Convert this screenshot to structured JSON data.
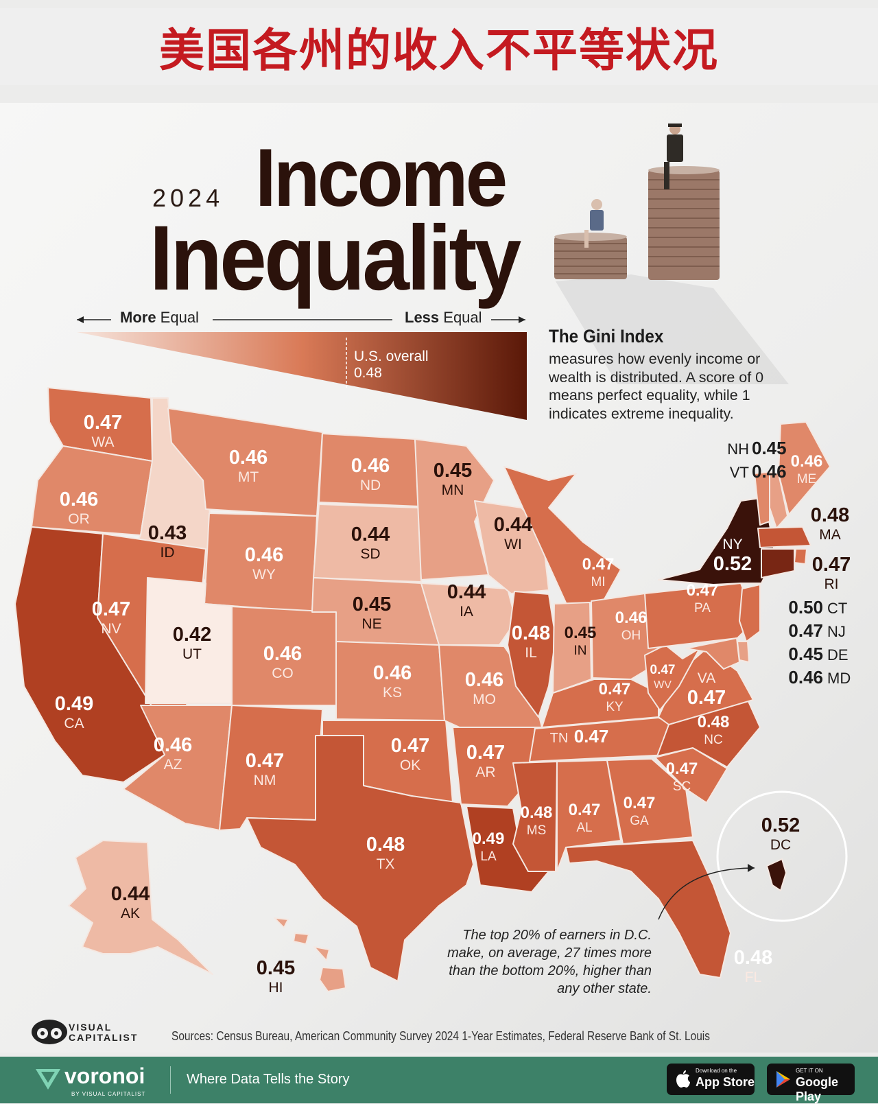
{
  "banner_title": "美国各州的收入不平等状况",
  "year": "2024",
  "title_line1": "Income",
  "title_line2": "Inequality",
  "scale": {
    "more_strong": "More",
    "more_rest": " Equal",
    "less_strong": "Less",
    "less_rest": " Equal",
    "overall_label": "U.S. overall",
    "overall_value": "0.48"
  },
  "gini": {
    "title": "The Gini Index",
    "description": "measures how evenly income or wealth is distributed. A score of 0 means perfect equality, while 1 indicates extreme inequality."
  },
  "note": "The top 20% of earners in D.C. make, on average, 27 times more than the bottom 20%, higher than any other state.",
  "sources": "Sources: Census Bureau, American Community Survey 2024 1-Year Estimates, Federal Reserve Bank of St. Louis",
  "brand": {
    "logo_line1": "VISUAL",
    "logo_line2": "CAPITALIST"
  },
  "footer": {
    "brand": "voronoi",
    "brand_sub": "BY VISUAL CAPITALIST",
    "tagline": "Where Data Tells the Story",
    "appstore_small": "Download on the",
    "appstore": "App Store",
    "googleplay_small": "GET IT ON",
    "googleplay": "Google Play"
  },
  "colors": {
    "banner_title": "#c41a20",
    "footer": "#3d8168",
    "darkest": "#3a120a",
    "lightest": "#fbeee8"
  },
  "chart_data": {
    "type": "choropleth",
    "metric": "Gini Index",
    "states": [
      {
        "code": "WA",
        "value": 0.47
      },
      {
        "code": "OR",
        "value": 0.46
      },
      {
        "code": "CA",
        "value": 0.49
      },
      {
        "code": "ID",
        "value": 0.43
      },
      {
        "code": "NV",
        "value": 0.47
      },
      {
        "code": "MT",
        "value": 0.46
      },
      {
        "code": "WY",
        "value": 0.46
      },
      {
        "code": "UT",
        "value": 0.42
      },
      {
        "code": "AZ",
        "value": 0.46
      },
      {
        "code": "CO",
        "value": 0.46
      },
      {
        "code": "NM",
        "value": 0.47
      },
      {
        "code": "ND",
        "value": 0.46
      },
      {
        "code": "SD",
        "value": 0.44
      },
      {
        "code": "NE",
        "value": 0.45
      },
      {
        "code": "KS",
        "value": 0.46
      },
      {
        "code": "OK",
        "value": 0.47
      },
      {
        "code": "TX",
        "value": 0.48
      },
      {
        "code": "MN",
        "value": 0.45
      },
      {
        "code": "IA",
        "value": 0.44
      },
      {
        "code": "MO",
        "value": 0.46
      },
      {
        "code": "AR",
        "value": 0.47
      },
      {
        "code": "LA",
        "value": 0.49
      },
      {
        "code": "WI",
        "value": 0.44
      },
      {
        "code": "IL",
        "value": 0.48
      },
      {
        "code": "MI",
        "value": 0.47
      },
      {
        "code": "IN",
        "value": 0.45
      },
      {
        "code": "OH",
        "value": 0.46
      },
      {
        "code": "KY",
        "value": 0.47
      },
      {
        "code": "TN",
        "value": 0.47
      },
      {
        "code": "MS",
        "value": 0.48
      },
      {
        "code": "AL",
        "value": 0.47
      },
      {
        "code": "GA",
        "value": 0.47
      },
      {
        "code": "FL",
        "value": 0.48
      },
      {
        "code": "SC",
        "value": 0.47
      },
      {
        "code": "NC",
        "value": 0.48
      },
      {
        "code": "VA",
        "value": 0.47
      },
      {
        "code": "WV",
        "value": 0.47
      },
      {
        "code": "PA",
        "value": 0.47
      },
      {
        "code": "NY",
        "value": 0.52
      },
      {
        "code": "ME",
        "value": 0.46
      },
      {
        "code": "NH",
        "value": 0.45
      },
      {
        "code": "VT",
        "value": 0.46
      },
      {
        "code": "MA",
        "value": 0.48
      },
      {
        "code": "RI",
        "value": 0.47
      },
      {
        "code": "CT",
        "value": 0.5
      },
      {
        "code": "NJ",
        "value": 0.47
      },
      {
        "code": "DE",
        "value": 0.45
      },
      {
        "code": "MD",
        "value": 0.46
      },
      {
        "code": "DC",
        "value": 0.52
      },
      {
        "code": "AK",
        "value": 0.44
      },
      {
        "code": "HI",
        "value": 0.45
      }
    ]
  }
}
